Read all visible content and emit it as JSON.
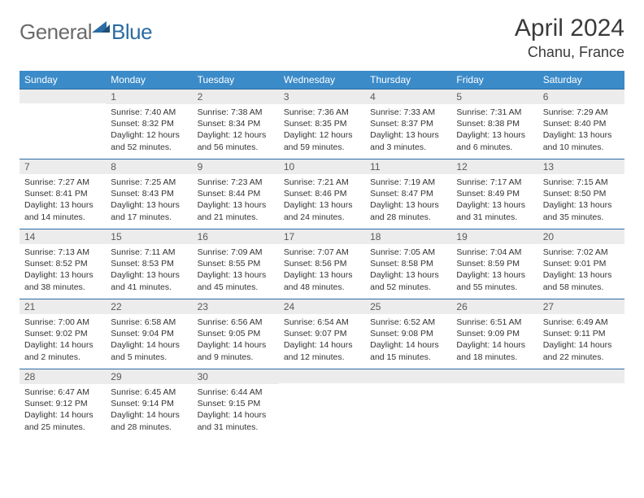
{
  "brand": {
    "part1": "General",
    "part2": "Blue"
  },
  "colors": {
    "header_bg": "#3b8bc9",
    "header_text": "#ffffff",
    "daynum_bg": "#ececec",
    "daynum_border": "#2b6ca3",
    "logo_gray": "#6b6b6b",
    "logo_blue": "#2b6ca3",
    "body_text": "#333333"
  },
  "title": "April 2024",
  "location": "Chanu, France",
  "weekdays": [
    "Sunday",
    "Monday",
    "Tuesday",
    "Wednesday",
    "Thursday",
    "Friday",
    "Saturday"
  ],
  "weeks": [
    [
      {
        "n": "",
        "sunrise": "",
        "sunset": "",
        "daylight": ""
      },
      {
        "n": "1",
        "sunrise": "Sunrise: 7:40 AM",
        "sunset": "Sunset: 8:32 PM",
        "daylight": "Daylight: 12 hours and 52 minutes."
      },
      {
        "n": "2",
        "sunrise": "Sunrise: 7:38 AM",
        "sunset": "Sunset: 8:34 PM",
        "daylight": "Daylight: 12 hours and 56 minutes."
      },
      {
        "n": "3",
        "sunrise": "Sunrise: 7:36 AM",
        "sunset": "Sunset: 8:35 PM",
        "daylight": "Daylight: 12 hours and 59 minutes."
      },
      {
        "n": "4",
        "sunrise": "Sunrise: 7:33 AM",
        "sunset": "Sunset: 8:37 PM",
        "daylight": "Daylight: 13 hours and 3 minutes."
      },
      {
        "n": "5",
        "sunrise": "Sunrise: 7:31 AM",
        "sunset": "Sunset: 8:38 PM",
        "daylight": "Daylight: 13 hours and 6 minutes."
      },
      {
        "n": "6",
        "sunrise": "Sunrise: 7:29 AM",
        "sunset": "Sunset: 8:40 PM",
        "daylight": "Daylight: 13 hours and 10 minutes."
      }
    ],
    [
      {
        "n": "7",
        "sunrise": "Sunrise: 7:27 AM",
        "sunset": "Sunset: 8:41 PM",
        "daylight": "Daylight: 13 hours and 14 minutes."
      },
      {
        "n": "8",
        "sunrise": "Sunrise: 7:25 AM",
        "sunset": "Sunset: 8:43 PM",
        "daylight": "Daylight: 13 hours and 17 minutes."
      },
      {
        "n": "9",
        "sunrise": "Sunrise: 7:23 AM",
        "sunset": "Sunset: 8:44 PM",
        "daylight": "Daylight: 13 hours and 21 minutes."
      },
      {
        "n": "10",
        "sunrise": "Sunrise: 7:21 AM",
        "sunset": "Sunset: 8:46 PM",
        "daylight": "Daylight: 13 hours and 24 minutes."
      },
      {
        "n": "11",
        "sunrise": "Sunrise: 7:19 AM",
        "sunset": "Sunset: 8:47 PM",
        "daylight": "Daylight: 13 hours and 28 minutes."
      },
      {
        "n": "12",
        "sunrise": "Sunrise: 7:17 AM",
        "sunset": "Sunset: 8:49 PM",
        "daylight": "Daylight: 13 hours and 31 minutes."
      },
      {
        "n": "13",
        "sunrise": "Sunrise: 7:15 AM",
        "sunset": "Sunset: 8:50 PM",
        "daylight": "Daylight: 13 hours and 35 minutes."
      }
    ],
    [
      {
        "n": "14",
        "sunrise": "Sunrise: 7:13 AM",
        "sunset": "Sunset: 8:52 PM",
        "daylight": "Daylight: 13 hours and 38 minutes."
      },
      {
        "n": "15",
        "sunrise": "Sunrise: 7:11 AM",
        "sunset": "Sunset: 8:53 PM",
        "daylight": "Daylight: 13 hours and 41 minutes."
      },
      {
        "n": "16",
        "sunrise": "Sunrise: 7:09 AM",
        "sunset": "Sunset: 8:55 PM",
        "daylight": "Daylight: 13 hours and 45 minutes."
      },
      {
        "n": "17",
        "sunrise": "Sunrise: 7:07 AM",
        "sunset": "Sunset: 8:56 PM",
        "daylight": "Daylight: 13 hours and 48 minutes."
      },
      {
        "n": "18",
        "sunrise": "Sunrise: 7:05 AM",
        "sunset": "Sunset: 8:58 PM",
        "daylight": "Daylight: 13 hours and 52 minutes."
      },
      {
        "n": "19",
        "sunrise": "Sunrise: 7:04 AM",
        "sunset": "Sunset: 8:59 PM",
        "daylight": "Daylight: 13 hours and 55 minutes."
      },
      {
        "n": "20",
        "sunrise": "Sunrise: 7:02 AM",
        "sunset": "Sunset: 9:01 PM",
        "daylight": "Daylight: 13 hours and 58 minutes."
      }
    ],
    [
      {
        "n": "21",
        "sunrise": "Sunrise: 7:00 AM",
        "sunset": "Sunset: 9:02 PM",
        "daylight": "Daylight: 14 hours and 2 minutes."
      },
      {
        "n": "22",
        "sunrise": "Sunrise: 6:58 AM",
        "sunset": "Sunset: 9:04 PM",
        "daylight": "Daylight: 14 hours and 5 minutes."
      },
      {
        "n": "23",
        "sunrise": "Sunrise: 6:56 AM",
        "sunset": "Sunset: 9:05 PM",
        "daylight": "Daylight: 14 hours and 9 minutes."
      },
      {
        "n": "24",
        "sunrise": "Sunrise: 6:54 AM",
        "sunset": "Sunset: 9:07 PM",
        "daylight": "Daylight: 14 hours and 12 minutes."
      },
      {
        "n": "25",
        "sunrise": "Sunrise: 6:52 AM",
        "sunset": "Sunset: 9:08 PM",
        "daylight": "Daylight: 14 hours and 15 minutes."
      },
      {
        "n": "26",
        "sunrise": "Sunrise: 6:51 AM",
        "sunset": "Sunset: 9:09 PM",
        "daylight": "Daylight: 14 hours and 18 minutes."
      },
      {
        "n": "27",
        "sunrise": "Sunrise: 6:49 AM",
        "sunset": "Sunset: 9:11 PM",
        "daylight": "Daylight: 14 hours and 22 minutes."
      }
    ],
    [
      {
        "n": "28",
        "sunrise": "Sunrise: 6:47 AM",
        "sunset": "Sunset: 9:12 PM",
        "daylight": "Daylight: 14 hours and 25 minutes."
      },
      {
        "n": "29",
        "sunrise": "Sunrise: 6:45 AM",
        "sunset": "Sunset: 9:14 PM",
        "daylight": "Daylight: 14 hours and 28 minutes."
      },
      {
        "n": "30",
        "sunrise": "Sunrise: 6:44 AM",
        "sunset": "Sunset: 9:15 PM",
        "daylight": "Daylight: 14 hours and 31 minutes."
      },
      {
        "n": "",
        "sunrise": "",
        "sunset": "",
        "daylight": ""
      },
      {
        "n": "",
        "sunrise": "",
        "sunset": "",
        "daylight": ""
      },
      {
        "n": "",
        "sunrise": "",
        "sunset": "",
        "daylight": ""
      },
      {
        "n": "",
        "sunrise": "",
        "sunset": "",
        "daylight": ""
      }
    ]
  ]
}
